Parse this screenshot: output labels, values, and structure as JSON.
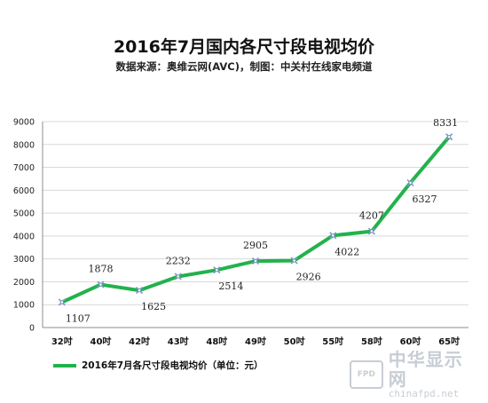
{
  "chart_data": {
    "type": "line",
    "title": "2016年7月国内各尺寸段电视均价",
    "subtitle": "数据来源：奥维云网(AVC)，制图：中关村在线家电频道",
    "categories": [
      "32吋",
      "40吋",
      "42吋",
      "43吋",
      "48吋",
      "49吋",
      "50吋",
      "55吋",
      "58吋",
      "60吋",
      "65吋"
    ],
    "series": [
      {
        "name": "2016年7月各尺寸段电视均价（单位：元）",
        "values": [
          1107,
          1878,
          1625,
          2232,
          2514,
          2905,
          2926,
          4022,
          4207,
          6327,
          8331
        ]
      }
    ],
    "ylim": [
      0,
      9000
    ],
    "yticks": [
      0,
      1000,
      2000,
      3000,
      4000,
      5000,
      6000,
      7000,
      8000,
      9000
    ],
    "grid": true,
    "legend": "bottom-left",
    "line_color": "#22b24c",
    "marker_color": "#7f96c9"
  },
  "watermark": {
    "badge": "FPD",
    "name": "中华显示网",
    "url": "chinafpd.net"
  }
}
